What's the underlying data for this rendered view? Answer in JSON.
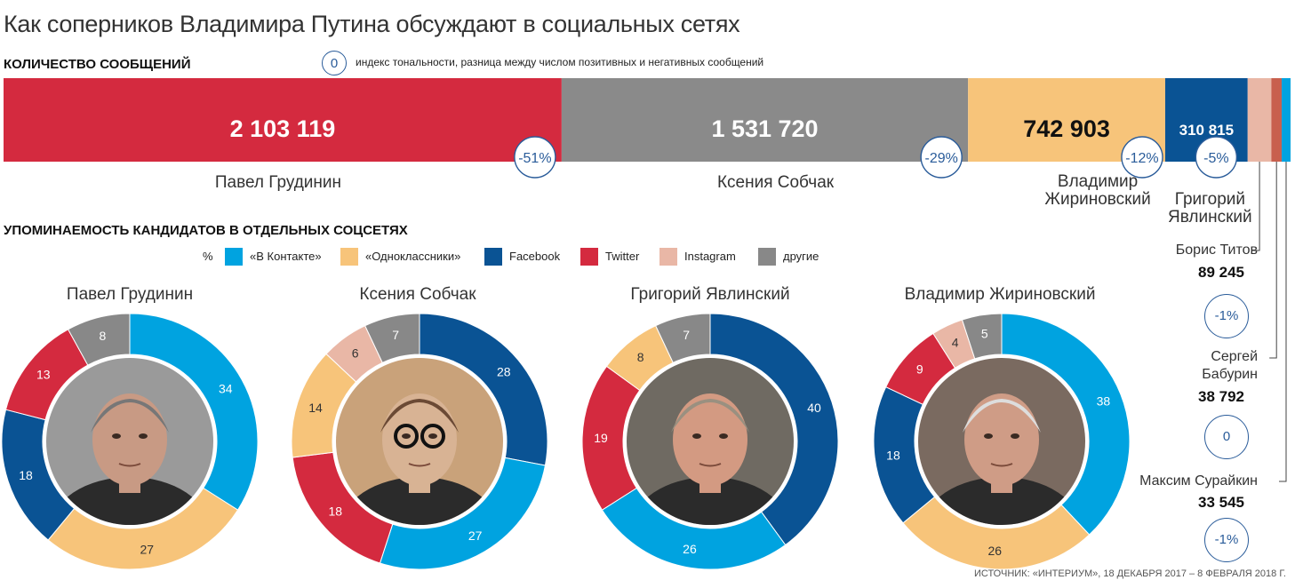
{
  "title": "Как соперников Владимира Путина обсуждают в социальных сетях",
  "messages_title": "КОЛИЧЕСТВО СООБЩЕНИЙ",
  "index_symbol": "0",
  "index_note": "индекс тональности, разница между числом позитивных и негативных сообщений",
  "platform_title": "УПОМИНАЕМОСТЬ КАНДИДАТОВ В ОТДЕЛЬНЫХ СОЦСЕТЯХ",
  "legend_unit": "%",
  "source": "ИСТОЧНИК: «ИНТЕРИУМ», 18 ДЕКАБРЯ 2017 – 8 ФЕВРАЛЯ 2018 Г.",
  "colors": {
    "vk": "#00a3e0",
    "ok": "#f7c47a",
    "facebook": "#0a5394",
    "twitter": "#d42a3f",
    "instagram": "#e9b7a6",
    "other": "#888888",
    "index_circle": "#2a5c9a"
  },
  "legend": [
    {
      "key": "vk",
      "label": "«В Контакте»"
    },
    {
      "key": "ok",
      "label": "«Одноклассники»"
    },
    {
      "key": "facebook",
      "label": "Facebook"
    },
    {
      "key": "twitter",
      "label": "Twitter"
    },
    {
      "key": "instagram",
      "label": "Instagram"
    },
    {
      "key": "other",
      "label": "другие"
    }
  ],
  "chart_data": [
    {
      "type": "bar",
      "title": "КОЛИЧЕСТВО СООБЩЕНИЙ",
      "orientation": "horizontal-stacked",
      "categories": [
        "Павел Грудинин",
        "Ксения Собчак",
        "Владимир Жириновский",
        "Григорий Явлинский",
        "Борис Титов",
        "Сергей Бабурин",
        "Максим Сурайкин"
      ],
      "values": [
        2103119,
        1531720,
        742903,
        310815,
        89245,
        38792,
        33545
      ],
      "value_labels": [
        "2 103 119",
        "1 531 720",
        "742 903",
        "310 815",
        "89 245",
        "38 792",
        "33 545"
      ],
      "tonality_index": [
        "-51%",
        "-29%",
        "-12%",
        "-5%",
        "-1%",
        "0",
        "-1%"
      ],
      "segment_colors": [
        "#d42a3f",
        "#8a8a8a",
        "#f7c47a",
        "#0a5394",
        "#e9b7a6",
        "#c8604e",
        "#00a3e0"
      ]
    },
    {
      "type": "pie",
      "title": "Павел Грудинин",
      "categories": [
        "«В Контакте»",
        "«Одноклассники»",
        "Facebook",
        "Twitter",
        "Instagram",
        "другие"
      ],
      "values": [
        34,
        27,
        18,
        13,
        0,
        8
      ]
    },
    {
      "type": "pie",
      "title": "Ксения Собчак",
      "categories": [
        "Facebook",
        "«В Контакте»",
        "Twitter",
        "«Одноклассники»",
        "Instagram",
        "другие"
      ],
      "values": [
        28,
        27,
        18,
        14,
        6,
        7
      ]
    },
    {
      "type": "pie",
      "title": "Григорий Явлинский",
      "categories": [
        "Facebook",
        "«В Контакте»",
        "Twitter",
        "«Одноклассники»",
        "Instagram",
        "другие"
      ],
      "values": [
        40,
        26,
        19,
        8,
        0,
        7
      ]
    },
    {
      "type": "pie",
      "title": "Владимир Жириновский",
      "categories": [
        "«В Контакте»",
        "«Одноклассники»",
        "Facebook",
        "Twitter",
        "Instagram",
        "другие"
      ],
      "values": [
        38,
        26,
        18,
        9,
        4,
        5
      ]
    }
  ]
}
